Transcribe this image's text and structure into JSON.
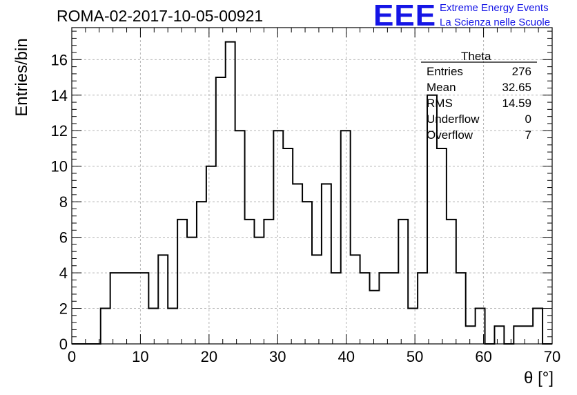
{
  "header": {
    "title": "ROMA-02-2017-10-05-00921",
    "logo_text": "EEE",
    "logo_line1": "Extreme Energy Events",
    "logo_line2": "La Scienza nelle Scuole",
    "logo_color": "#1515e6"
  },
  "stats": {
    "title": "Theta",
    "rows": [
      {
        "name": "Entries",
        "value": "276"
      },
      {
        "name": "Mean",
        "value": "32.65"
      },
      {
        "name": "RMS",
        "value": "14.59"
      },
      {
        "name": "Underflow",
        "value": "0"
      },
      {
        "name": "Overflow",
        "value": "7"
      }
    ]
  },
  "chart_data": {
    "type": "histogram",
    "xlabel": "θ [°]",
    "ylabel": "Entries/bin",
    "xlim": [
      0,
      70
    ],
    "ylim": [
      0,
      17.8
    ],
    "bin_width": 1.4,
    "bin_edges_start": 0,
    "x_ticks": [
      0,
      10,
      20,
      30,
      40,
      50,
      60,
      70
    ],
    "y_ticks": [
      0,
      2,
      4,
      6,
      8,
      10,
      12,
      14,
      16
    ],
    "grid": true,
    "values": [
      0,
      0,
      0,
      2,
      4,
      4,
      4,
      4,
      2,
      5,
      2,
      7,
      6,
      8,
      10,
      15,
      17,
      12,
      7,
      6,
      7,
      12,
      11,
      9,
      8,
      5,
      9,
      4,
      12,
      5,
      4,
      3,
      4,
      4,
      7,
      2,
      4,
      14,
      11,
      7,
      4,
      1,
      2,
      0,
      1,
      0,
      1,
      1,
      2,
      0
    ]
  }
}
